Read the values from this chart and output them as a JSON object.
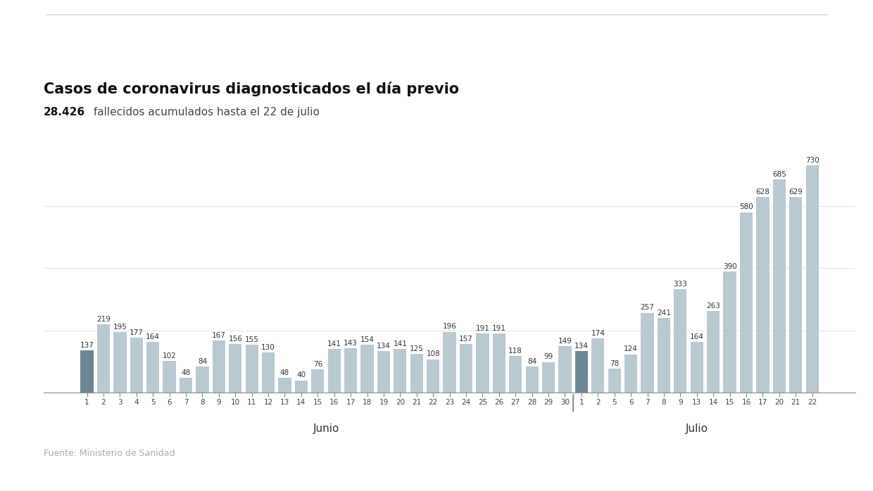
{
  "title": "Casos de coronavirus diagnosticados el día previo",
  "subtitle_bold": "28.426",
  "subtitle_rest": " fallecidos acumulados hasta el 22 de julio",
  "source": "Fuente: Ministerio de Sanidad",
  "labels": [
    "1",
    "2",
    "3",
    "4",
    "5",
    "6",
    "7",
    "8",
    "9",
    "10",
    "11",
    "12",
    "13",
    "14",
    "15",
    "16",
    "17",
    "18",
    "19",
    "20",
    "21",
    "22",
    "23",
    "24",
    "25",
    "26",
    "27",
    "28",
    "29",
    "30",
    "1",
    "2",
    "5",
    "6",
    "7",
    "8",
    "9",
    "13",
    "14",
    "15",
    "16",
    "17",
    "20",
    "21",
    "22"
  ],
  "values": [
    137,
    219,
    195,
    177,
    164,
    102,
    48,
    84,
    167,
    156,
    155,
    130,
    48,
    40,
    76,
    141,
    143,
    154,
    134,
    141,
    125,
    108,
    196,
    157,
    191,
    191,
    118,
    84,
    99,
    149,
    134,
    174,
    78,
    124,
    257,
    241,
    333,
    164,
    263,
    390,
    580,
    628,
    685,
    629,
    730
  ],
  "month_labels": [
    "Junio",
    "Julio"
  ],
  "junio_range": [
    0,
    29
  ],
  "julio_range": [
    30,
    44
  ],
  "dark_bars": [
    0,
    30
  ],
  "bar_color_light": "#b8c9d2",
  "bar_color_dark": "#6d8694",
  "background_color": "#ffffff",
  "grid_color": "#e8e8e8",
  "title_fontsize": 15,
  "subtitle_fontsize": 11,
  "source_fontsize": 9,
  "label_fontsize": 7.5,
  "bar_label_fontsize": 7.5,
  "ylim": [
    0,
    820
  ],
  "yticks": [
    200,
    400,
    600
  ]
}
